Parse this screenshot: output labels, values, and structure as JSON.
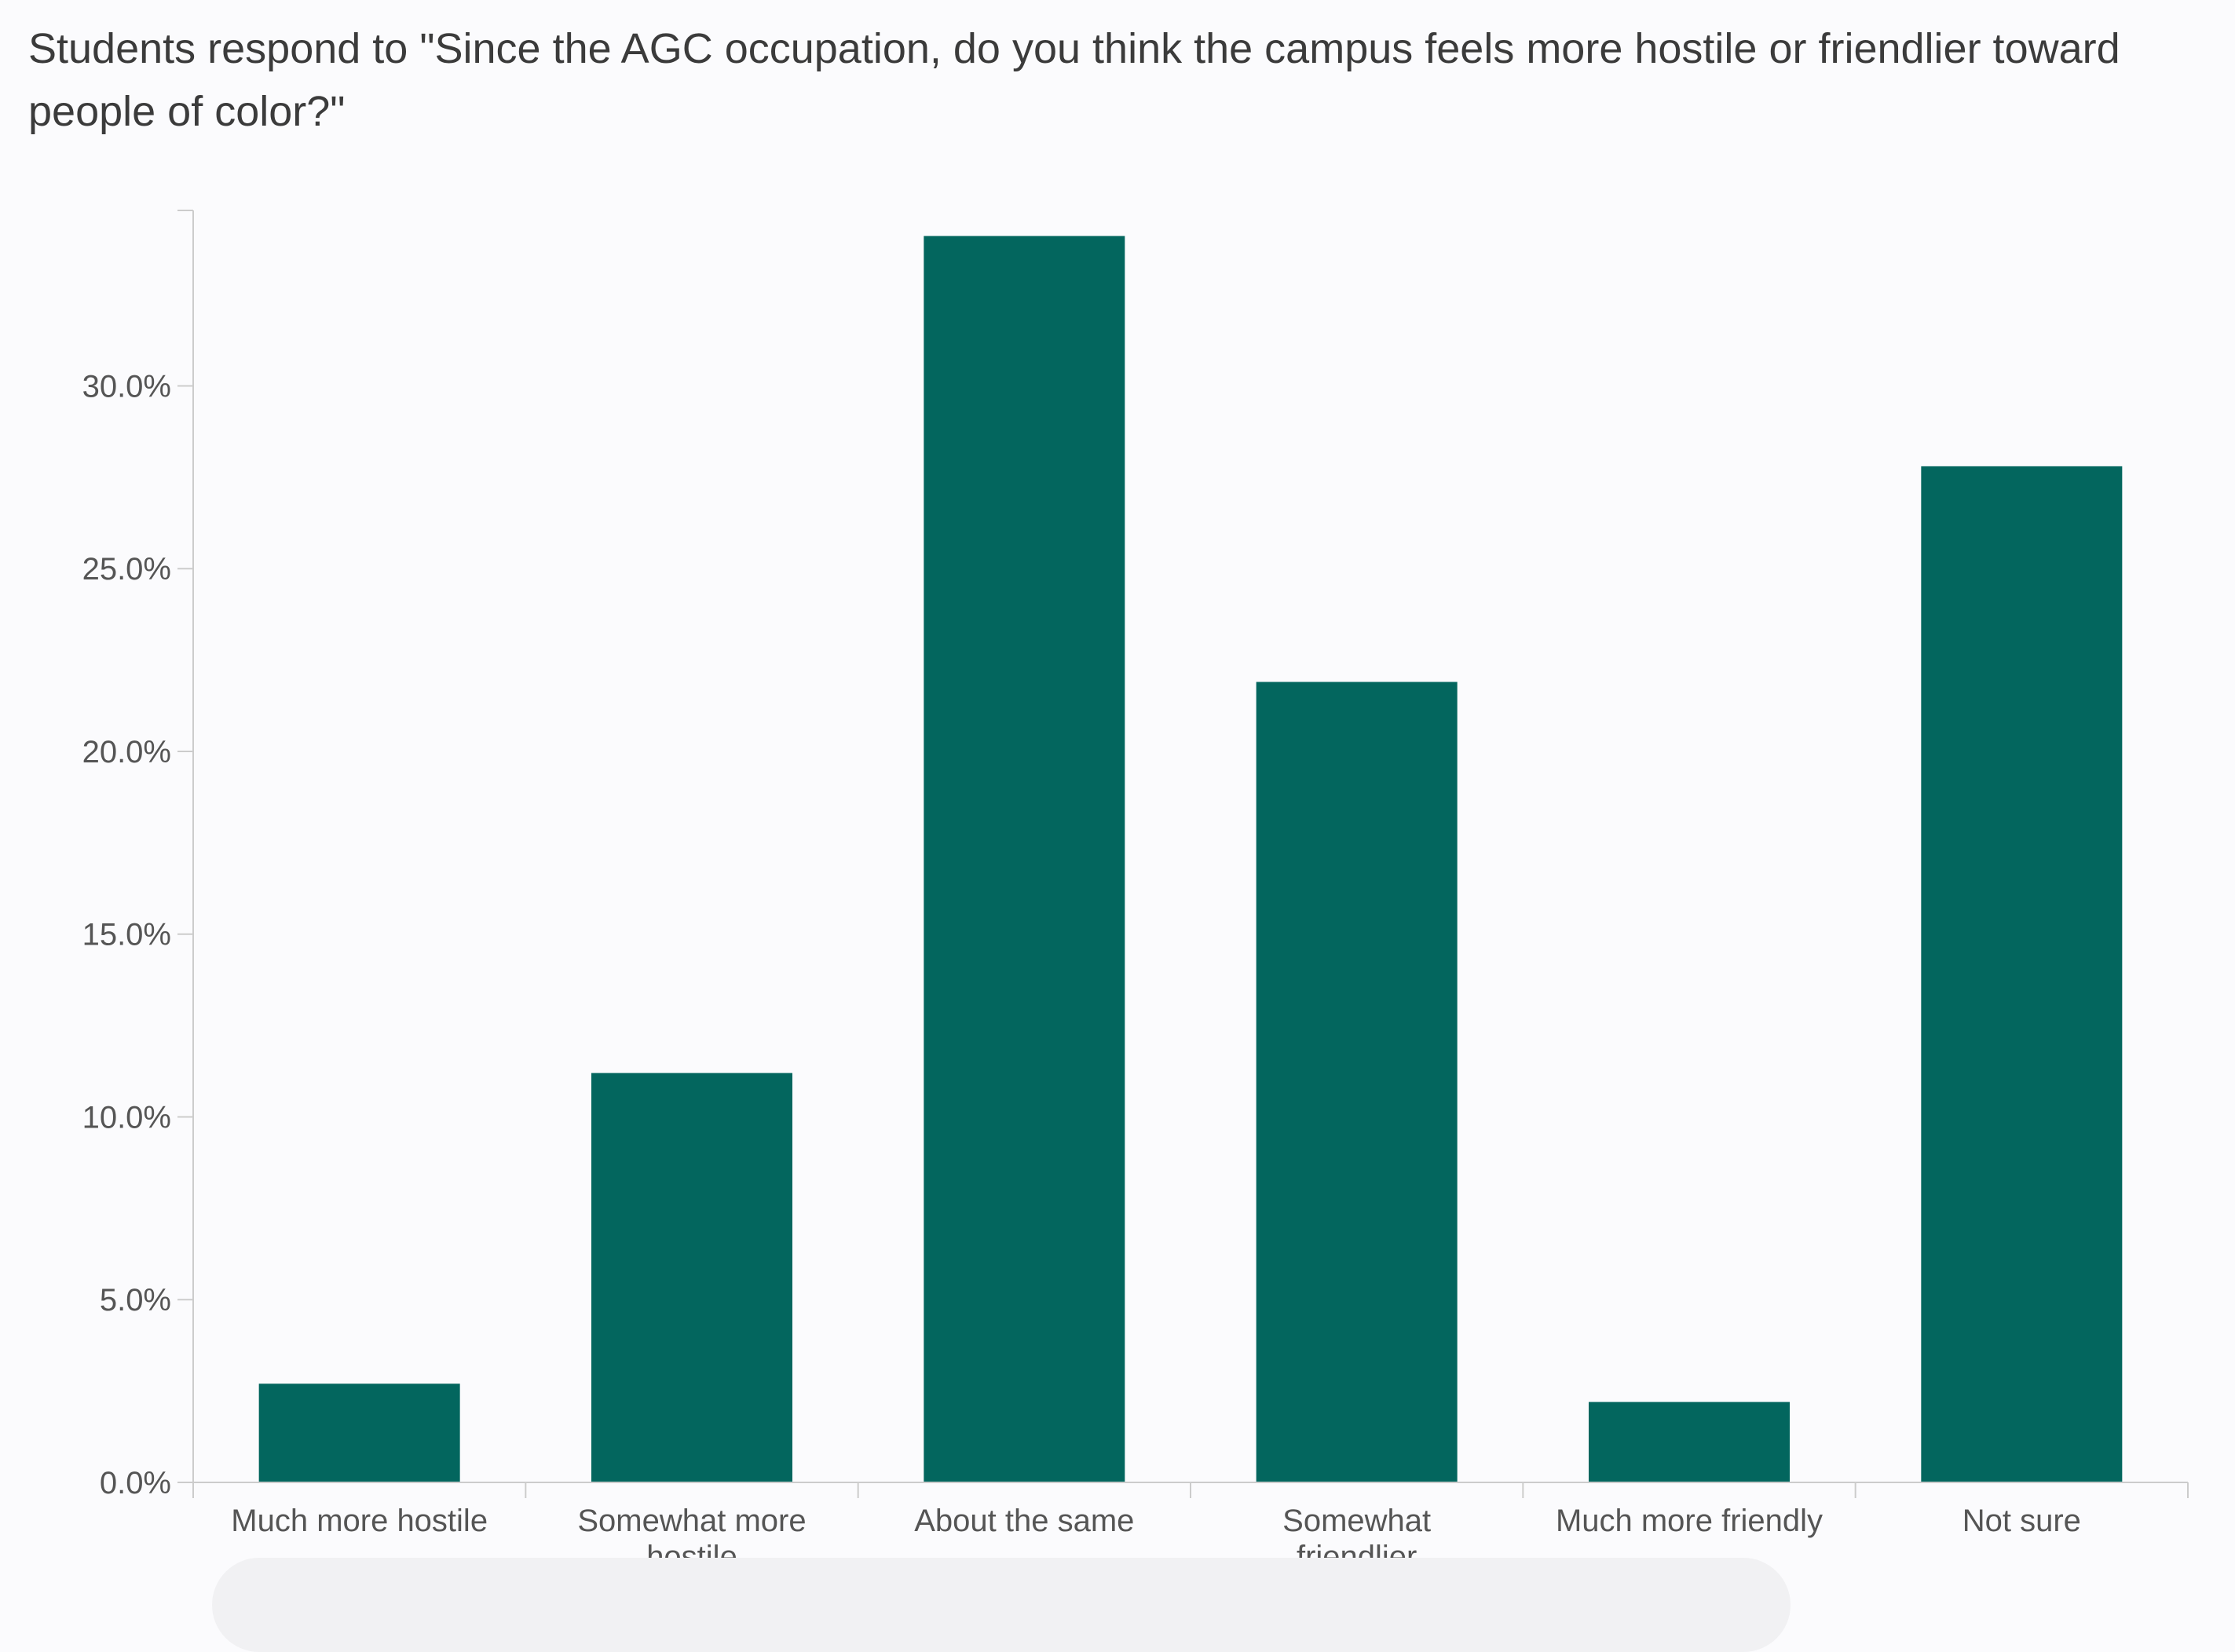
{
  "colors": {
    "bar": "#03665e",
    "axis": "#cccccc",
    "text": "#555555",
    "title": "#3b3b3b",
    "background": "#fbfbfd"
  },
  "chart_data": {
    "type": "bar",
    "title": "Students respond to \"Since the AGC occupation, do you think the campus feels more hostile or friendlier toward people of color?\"",
    "xlabel": "",
    "ylabel": "",
    "categories": [
      "Much more hostile",
      "Somewhat more hostile",
      "About the same",
      "Somewhat friendlier",
      "Much more friendly",
      "Not sure"
    ],
    "values": [
      2.7,
      11.2,
      34.1,
      21.9,
      2.2,
      27.8
    ],
    "ylim": [
      0,
      34.8
    ],
    "yticks": [
      0,
      5,
      10,
      15,
      20,
      25,
      30
    ],
    "ytick_labels": [
      "0.0%",
      "5.0%",
      "10.0%",
      "15.0%",
      "20.0%",
      "25.0%",
      "30.0%"
    ],
    "value_unit": "%",
    "grid": false,
    "legend": "none"
  }
}
